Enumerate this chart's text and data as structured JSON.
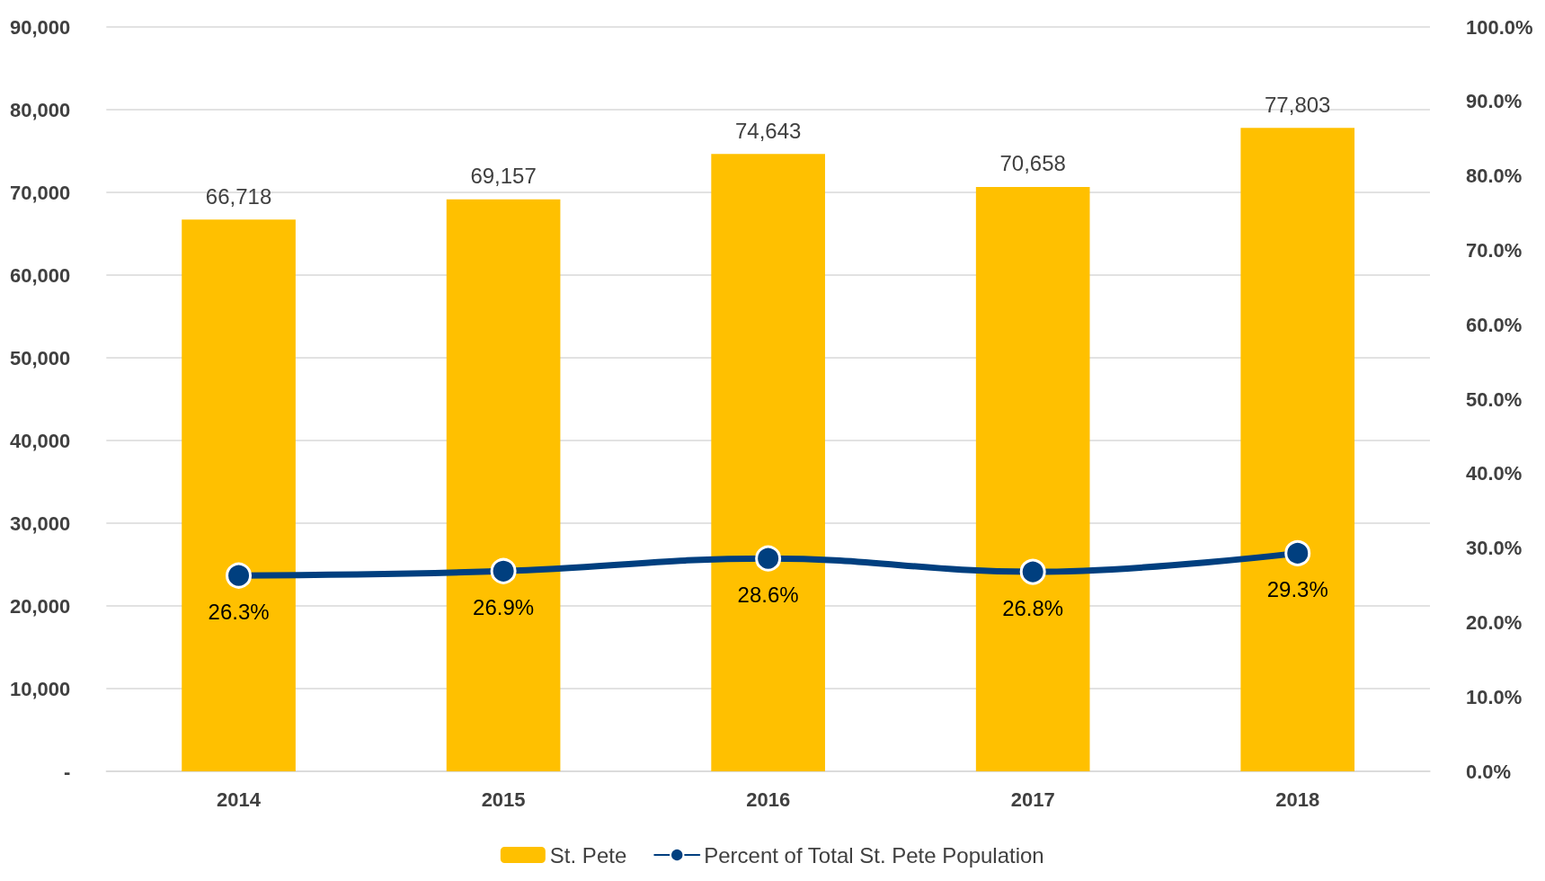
{
  "chart_data": {
    "type": "bar",
    "categories": [
      "2014",
      "2015",
      "2016",
      "2017",
      "2018"
    ],
    "series": [
      {
        "name": "St. Pete",
        "color": "#ffc000",
        "values": [
          66718,
          69157,
          74643,
          70658,
          77803
        ],
        "value_labels": [
          "66,718",
          "69,157",
          "74,643",
          "70,658",
          "77,803"
        ]
      },
      {
        "name": "Percent of Total St. Pete Population",
        "type": "line",
        "axis": "y2",
        "color": "#003f7f",
        "values": [
          26.3,
          26.9,
          28.6,
          26.8,
          29.3
        ],
        "value_labels": [
          "26.3%",
          "26.9%",
          "28.6%",
          "26.8%",
          "29.3%"
        ]
      }
    ],
    "ylim": [
      0,
      90000
    ],
    "yticks": [
      {
        "value": 0,
        "label": "-"
      },
      {
        "value": 10000,
        "label": "10,000"
      },
      {
        "value": 20000,
        "label": "20,000"
      },
      {
        "value": 30000,
        "label": "30,000"
      },
      {
        "value": 40000,
        "label": "40,000"
      },
      {
        "value": 50000,
        "label": "50,000"
      },
      {
        "value": 60000,
        "label": "60,000"
      },
      {
        "value": 70000,
        "label": "70,000"
      },
      {
        "value": 80000,
        "label": "80,000"
      },
      {
        "value": 90000,
        "label": "90,000"
      }
    ],
    "y2lim": [
      0,
      100
    ],
    "y2ticks": [
      {
        "value": 0,
        "label": "0.0%"
      },
      {
        "value": 10,
        "label": "10.0%"
      },
      {
        "value": 20,
        "label": "20.0%"
      },
      {
        "value": 30,
        "label": "30.0%"
      },
      {
        "value": 40,
        "label": "40.0%"
      },
      {
        "value": 50,
        "label": "50.0%"
      },
      {
        "value": 60,
        "label": "60.0%"
      },
      {
        "value": 70,
        "label": "70.0%"
      },
      {
        "value": 80,
        "label": "80.0%"
      },
      {
        "value": 90,
        "label": "90.0%"
      },
      {
        "value": 100,
        "label": "100.0%"
      }
    ],
    "grid": "y",
    "legend": "bottom",
    "marker": "circle",
    "line_style": "solid"
  }
}
